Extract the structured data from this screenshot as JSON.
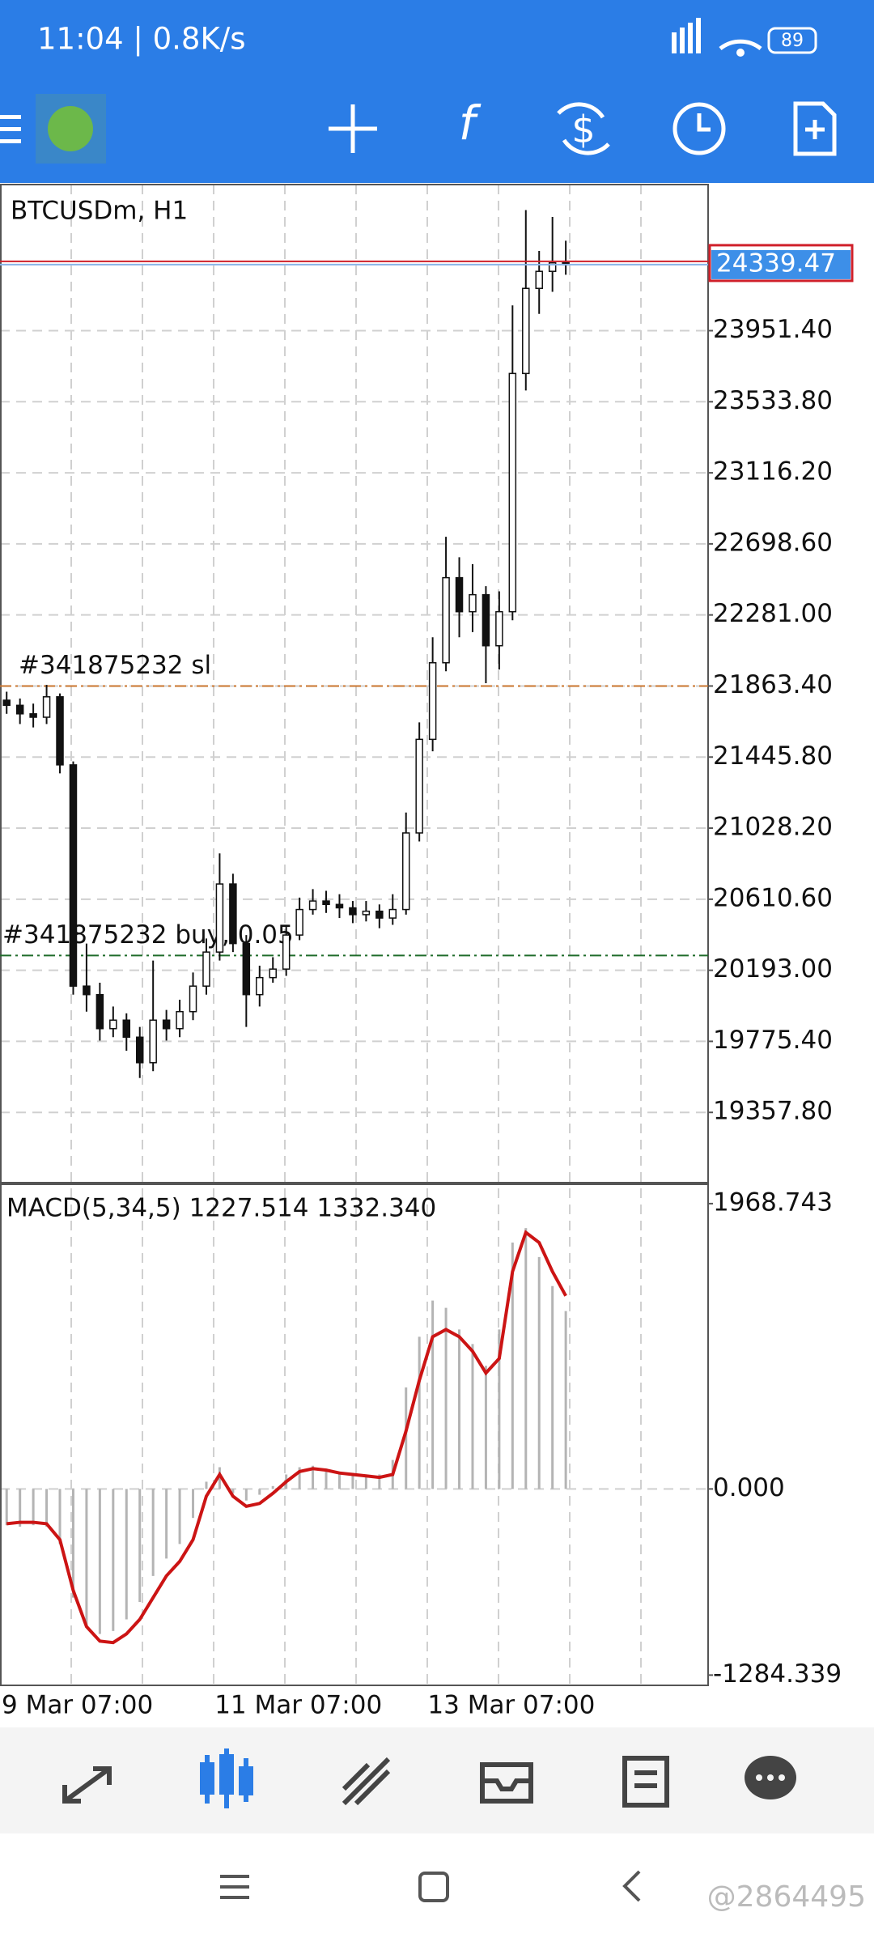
{
  "status_bar": {
    "time": "11:04 | 0.8K/s",
    "battery": "89"
  },
  "chart_data": [
    {
      "type": "candlestick",
      "title": "BTCUSDm, H1",
      "categories": [
        "9 Mar 07:00",
        null,
        null,
        null,
        null,
        null,
        null,
        null,
        null,
        null,
        null,
        null,
        null,
        null,
        null,
        null,
        "11 Mar 07:00",
        null,
        null,
        null,
        null,
        null,
        null,
        null,
        null,
        null,
        null,
        null,
        null,
        null,
        null,
        null,
        "13 Mar 07:00",
        null,
        null,
        null,
        null,
        null,
        null,
        null,
        null,
        null,
        null
      ],
      "candles": [
        [
          21780,
          21830,
          21700,
          21750
        ],
        [
          21750,
          21790,
          21640,
          21700
        ],
        [
          21700,
          21760,
          21620,
          21680
        ],
        [
          21680,
          21870,
          21640,
          21800
        ],
        [
          21800,
          21820,
          21350,
          21400
        ],
        [
          21400,
          21420,
          20050,
          20100
        ],
        [
          20100,
          20350,
          19950,
          20050
        ],
        [
          20050,
          20120,
          19780,
          19850
        ],
        [
          19850,
          19980,
          19800,
          19900
        ],
        [
          19900,
          19940,
          19720,
          19800
        ],
        [
          19800,
          19860,
          19560,
          19650
        ],
        [
          19650,
          20250,
          19600,
          19900
        ],
        [
          19900,
          19960,
          19780,
          19850
        ],
        [
          19850,
          20020,
          19800,
          19950
        ],
        [
          19950,
          20180,
          19900,
          20100
        ],
        [
          20100,
          20380,
          20050,
          20300
        ],
        [
          20300,
          20880,
          20250,
          20700
        ],
        [
          20700,
          20760,
          20300,
          20350
        ],
        [
          20350,
          20400,
          19860,
          20050
        ],
        [
          20050,
          20220,
          19980,
          20150
        ],
        [
          20150,
          20270,
          20120,
          20200
        ],
        [
          20200,
          20460,
          20160,
          20400
        ],
        [
          20400,
          20620,
          20370,
          20550
        ],
        [
          20550,
          20670,
          20520,
          20600
        ],
        [
          20600,
          20660,
          20530,
          20580
        ],
        [
          20580,
          20640,
          20500,
          20560
        ],
        [
          20560,
          20600,
          20470,
          20520
        ],
        [
          20520,
          20600,
          20480,
          20540
        ],
        [
          20540,
          20580,
          20440,
          20500
        ],
        [
          20500,
          20640,
          20460,
          20550
        ],
        [
          20550,
          21120,
          20520,
          21000
        ],
        [
          21000,
          21650,
          20950,
          21550
        ],
        [
          21550,
          22150,
          21480,
          22000
        ],
        [
          22000,
          22740,
          21950,
          22500
        ],
        [
          22500,
          22620,
          22150,
          22300
        ],
        [
          22300,
          22580,
          22180,
          22400
        ],
        [
          22400,
          22450,
          21880,
          22100
        ],
        [
          22100,
          22420,
          21960,
          22300
        ],
        [
          22300,
          24100,
          22250,
          23700
        ],
        [
          23700,
          24660,
          23600,
          24200
        ],
        [
          24200,
          24420,
          24050,
          24300
        ],
        [
          24300,
          24620,
          24180,
          24350
        ],
        [
          24350,
          24480,
          24280,
          24339.47
        ]
      ],
      "current_price": 24339.47,
      "ylim": [
        18945,
        24810
      ],
      "yticks": [
        {
          "value": 23951.4,
          "label": "23951.40"
        },
        {
          "value": 23533.8,
          "label": "23533.80"
        },
        {
          "value": 23116.2,
          "label": "23116.20"
        },
        {
          "value": 22698.6,
          "label": "22698.60"
        },
        {
          "value": 22281,
          "label": "22281.00"
        },
        {
          "value": 21863.4,
          "label": "21863.40"
        },
        {
          "value": 21445.8,
          "label": "21445.80"
        },
        {
          "value": 21028.2,
          "label": "21028.20"
        },
        {
          "value": 20610.6,
          "label": "20610.60"
        },
        {
          "value": 20193,
          "label": "20193.00"
        },
        {
          "value": 19775.4,
          "label": "19775.40"
        },
        {
          "value": 19357.8,
          "label": "19357.80"
        }
      ],
      "order_lines": [
        {
          "label": "#341875232 sl",
          "value": 21863.4,
          "color": "#c8742e"
        },
        {
          "label": "#341875232 buy, 0.05",
          "value": 20280,
          "color": "#1f6b2a"
        }
      ],
      "grid": true
    },
    {
      "type": "macd",
      "title": "MACD(5,34,5) 1227.514 1332.340",
      "histogram": [
        -250,
        -260,
        -250,
        -260,
        -380,
        -750,
        -950,
        -1000,
        -980,
        -900,
        -780,
        -600,
        -480,
        -380,
        -200,
        50,
        150,
        -30,
        -80,
        -40,
        20,
        100,
        150,
        160,
        140,
        120,
        110,
        100,
        100,
        200,
        700,
        1050,
        1300,
        1250,
        1100,
        1000,
        850,
        1100,
        1700,
        1800,
        1600,
        1400,
        1227.514
      ],
      "signal": [
        -240,
        -230,
        -230,
        -240,
        -350,
        -700,
        -950,
        -1050,
        -1060,
        -1000,
        -900,
        -750,
        -600,
        -500,
        -350,
        -50,
        100,
        -50,
        -120,
        -100,
        -30,
        50,
        120,
        140,
        130,
        110,
        100,
        90,
        80,
        100,
        400,
        750,
        1050,
        1100,
        1050,
        950,
        800,
        900,
        1500,
        1770,
        1700,
        1500,
        1332.34
      ],
      "histogram_color": "#b4b4b4",
      "signal_color": "#cc1414",
      "ylim": [
        -1355,
        2091
      ],
      "yticks": [
        1968.743,
        {
          "value": 0,
          "label": "0.000"
        },
        -1284.339
      ]
    }
  ],
  "watermark": "@2864495"
}
